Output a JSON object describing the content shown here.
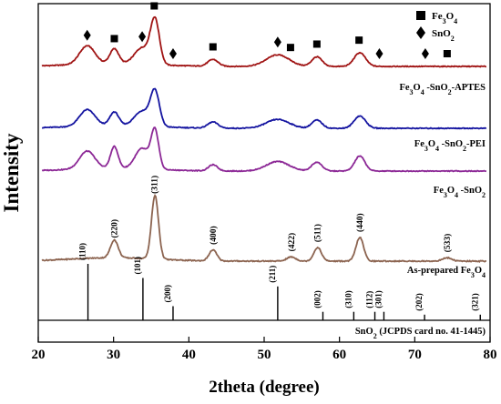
{
  "chart_data": {
    "type": "line",
    "xlabel": "2theta (degree)",
    "ylabel": "Intensity",
    "xlim": [
      20,
      80
    ],
    "x_ticks": [
      20,
      30,
      40,
      50,
      60,
      70,
      80
    ],
    "legend": {
      "placement": "top-right",
      "entries": [
        {
          "marker": "square",
          "label": "Fe3O4"
        },
        {
          "marker": "diamond",
          "label": "SnO2"
        }
      ]
    },
    "series": [
      {
        "name": "Fe3O4 -SnO2-APTES",
        "color": "#a01414",
        "peaks": [
          {
            "x": 26.5,
            "h": 0.27,
            "w": 1.2
          },
          {
            "x": 30.1,
            "h": 0.22,
            "w": 0.7
          },
          {
            "x": 33.8,
            "h": 0.24,
            "w": 1.2
          },
          {
            "x": 35.5,
            "h": 0.64,
            "w": 0.7
          },
          {
            "x": 43.2,
            "h": 0.1,
            "w": 0.8
          },
          {
            "x": 51.8,
            "h": 0.17,
            "w": 1.8
          },
          {
            "x": 57.0,
            "h": 0.14,
            "w": 0.8
          },
          {
            "x": 62.7,
            "h": 0.2,
            "w": 0.9
          }
        ],
        "markers": [
          {
            "x": 26.5,
            "type": "diamond"
          },
          {
            "x": 30.1,
            "type": "square"
          },
          {
            "x": 33.8,
            "type": "diamond"
          },
          {
            "x": 35.4,
            "type": "square"
          },
          {
            "x": 37.9,
            "type": "diamond"
          },
          {
            "x": 43.2,
            "type": "square"
          },
          {
            "x": 51.8,
            "type": "diamond"
          },
          {
            "x": 53.5,
            "type": "square"
          },
          {
            "x": 57.0,
            "type": "square"
          },
          {
            "x": 62.6,
            "type": "square"
          },
          {
            "x": 65.3,
            "type": "diamond"
          },
          {
            "x": 71.4,
            "type": "diamond"
          },
          {
            "x": 74.3,
            "type": "square"
          }
        ]
      },
      {
        "name": "Fe3O4 -SnO2-PEI",
        "color": "#1414a0",
        "peaks": [
          {
            "x": 26.5,
            "h": 0.24,
            "w": 1.2
          },
          {
            "x": 30.1,
            "h": 0.2,
            "w": 0.7
          },
          {
            "x": 33.8,
            "h": 0.22,
            "w": 1.2
          },
          {
            "x": 35.5,
            "h": 0.5,
            "w": 0.7
          },
          {
            "x": 43.2,
            "h": 0.09,
            "w": 0.8
          },
          {
            "x": 51.8,
            "h": 0.13,
            "w": 1.8
          },
          {
            "x": 57.0,
            "h": 0.12,
            "w": 0.8
          },
          {
            "x": 62.7,
            "h": 0.18,
            "w": 0.9
          }
        ]
      },
      {
        "name": "Fe3O4 -SnO2",
        "color": "#8c2896",
        "peaks": [
          {
            "x": 26.5,
            "h": 0.26,
            "w": 1.2
          },
          {
            "x": 30.1,
            "h": 0.32,
            "w": 0.6
          },
          {
            "x": 33.8,
            "h": 0.3,
            "w": 1.1
          },
          {
            "x": 35.5,
            "h": 0.55,
            "w": 0.6
          },
          {
            "x": 43.2,
            "h": 0.09,
            "w": 0.7
          },
          {
            "x": 51.8,
            "h": 0.14,
            "w": 1.8
          },
          {
            "x": 57.0,
            "h": 0.13,
            "w": 0.8
          },
          {
            "x": 62.7,
            "h": 0.22,
            "w": 0.8
          }
        ]
      },
      {
        "name": "As-prepared Fe3O4",
        "color": "#8c6450",
        "peaks": [
          {
            "x": 30.1,
            "h": 0.21,
            "w": 0.6
          },
          {
            "x": 35.5,
            "h": 0.75,
            "w": 0.55
          },
          {
            "x": 43.2,
            "h": 0.13,
            "w": 0.6
          },
          {
            "x": 53.6,
            "h": 0.05,
            "w": 0.7
          },
          {
            "x": 57.1,
            "h": 0.16,
            "w": 0.6
          },
          {
            "x": 62.7,
            "h": 0.28,
            "w": 0.6
          },
          {
            "x": 74.3,
            "h": 0.04,
            "w": 0.7
          }
        ],
        "peak_labels": [
          {
            "x": 30.1,
            "label": "(220)"
          },
          {
            "x": 35.4,
            "label": "(311)"
          },
          {
            "x": 43.2,
            "label": "(400)"
          },
          {
            "x": 53.6,
            "label": "(422)"
          },
          {
            "x": 57.1,
            "label": "(511)"
          },
          {
            "x": 62.7,
            "label": "(440)"
          },
          {
            "x": 74.3,
            "label": "(533)"
          }
        ]
      }
    ],
    "reference": {
      "name": "SnO2 (JCPDS card no. 41-1445)",
      "lines": [
        {
          "x": 26.6,
          "h": 1.0,
          "label": "(110)"
        },
        {
          "x": 33.9,
          "h": 0.75,
          "label": "(101)"
        },
        {
          "x": 37.9,
          "h": 0.25,
          "label": "(200)"
        },
        {
          "x": 51.8,
          "h": 0.6,
          "label": "(211)"
        },
        {
          "x": 57.8,
          "h": 0.15,
          "label": "(002)"
        },
        {
          "x": 61.9,
          "h": 0.15,
          "label": "(310)"
        },
        {
          "x": 64.7,
          "h": 0.15,
          "label": "(112)"
        },
        {
          "x": 65.9,
          "h": 0.15,
          "label": "(301)"
        },
        {
          "x": 71.3,
          "h": 0.1,
          "label": "(202)"
        },
        {
          "x": 78.7,
          "h": 0.1,
          "label": "(321)"
        }
      ]
    }
  }
}
